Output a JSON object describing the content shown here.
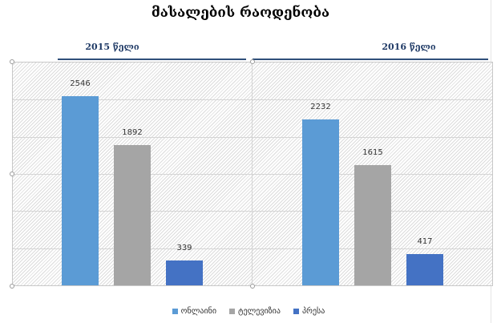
{
  "chart_data": {
    "type": "bar",
    "title": "მასალების რაოდენობა",
    "categories": [
      "2015 წელი",
      "2016 წელი"
    ],
    "series": [
      {
        "name": "ონლაინი",
        "color": "#5b9bd5",
        "values": [
          2546,
          2232
        ]
      },
      {
        "name": "ტელევიზია",
        "color": "#a5a5a5",
        "values": [
          1892,
          1615
        ]
      },
      {
        "name": "პრესა",
        "color": "#4472c4",
        "values": [
          339,
          417
        ]
      }
    ],
    "ylim": [
      0,
      3000
    ],
    "grid": true,
    "legend": "bottom-center"
  }
}
